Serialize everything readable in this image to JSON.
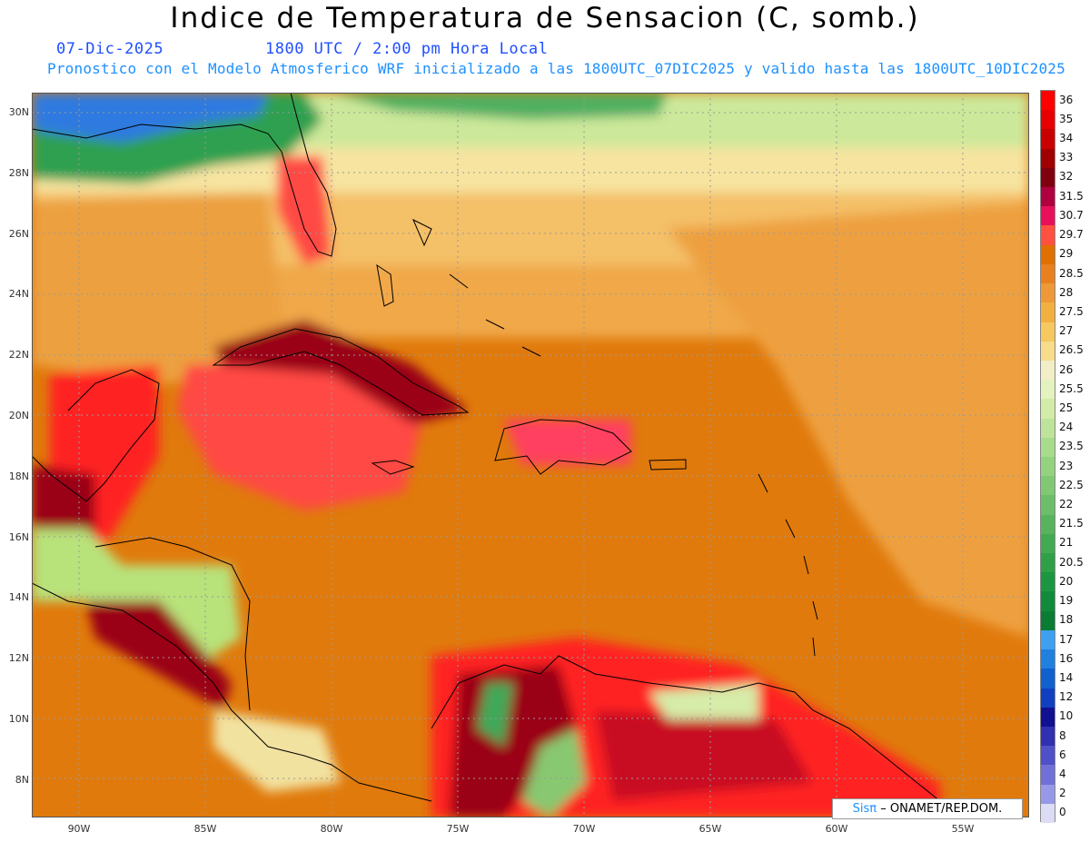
{
  "title": "Indice de Temperatura de Sensacion (C, somb.)",
  "date": "07-Dic-2025",
  "time": "1800 UTC / 2:00 pm Hora Local",
  "model_info": "Pronostico con el Modelo Atmosferico WRF inicializado a las 1800UTC_07DIC2025 y valido hasta las  1800UTC_10DIC2025",
  "credit_brand": "Sisπ",
  "credit_text": "– ONAMET/REP.DOM.",
  "lat_labels": [
    "30N",
    "28N",
    "26N",
    "24N",
    "22N",
    "20N",
    "18N",
    "16N",
    "14N",
    "12N",
    "10N",
    "8N"
  ],
  "lon_labels": [
    "90W",
    "85W",
    "80W",
    "75W",
    "70W",
    "65W",
    "60W",
    "55W"
  ],
  "colorbar": {
    "labels": [
      "36",
      "35",
      "34",
      "33",
      "32",
      "31.5",
      "30.7",
      "29.7",
      "29",
      "28.5",
      "28",
      "27.5",
      "27",
      "26.5",
      "26",
      "25.5",
      "25",
      "24",
      "23.5",
      "23",
      "22.5",
      "22",
      "21.5",
      "21",
      "20.5",
      "20",
      "19",
      "18",
      "17",
      "16",
      "14",
      "12",
      "10",
      "8",
      "6",
      "4",
      "2",
      "0"
    ],
    "colors": [
      "#ff0000",
      "#e80000",
      "#c80000",
      "#a00000",
      "#800010",
      "#b00040",
      "#e8105a",
      "#ff5040",
      "#e07000",
      "#e88020",
      "#ee9838",
      "#f2b040",
      "#f6c860",
      "#f8dc8a",
      "#f2eec8",
      "#e4f2c0",
      "#d2eca8",
      "#bde49a",
      "#a8dc8c",
      "#94d280",
      "#80c874",
      "#6cbe68",
      "#58b45c",
      "#44aa52",
      "#30a048",
      "#1c9640",
      "#128a3c",
      "#0a7c34",
      "#40a0f0",
      "#2080e0",
      "#1060d0",
      "#1040c0",
      "#101090",
      "#3030b0",
      "#5050c8",
      "#7070d8",
      "#9898e8",
      "#dcdcf4"
    ]
  },
  "colors": {
    "ocean_base": "#e07a0c",
    "warm": "#f2a44a",
    "hot": "#ff4a4a",
    "very_hot": "#9a0012",
    "cool": "#b8e27a",
    "cold": "#0e8a3e",
    "coldest": "#2e6ee0"
  }
}
